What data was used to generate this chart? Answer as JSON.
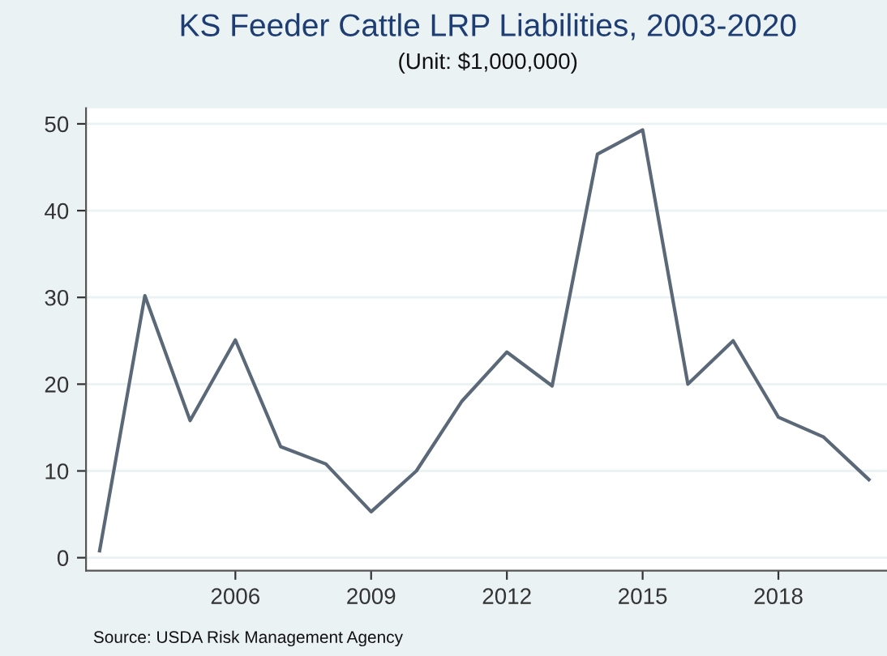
{
  "chart_data": {
    "type": "line",
    "title": "KS Feeder Cattle LRP Liabilities, 2003-2020",
    "subtitle": "(Unit: $1,000,000)",
    "x": [
      2003,
      2004,
      2005,
      2006,
      2007,
      2008,
      2009,
      2010,
      2011,
      2012,
      2013,
      2014,
      2015,
      2016,
      2017,
      2018,
      2019,
      2020
    ],
    "series": [
      {
        "color": "#5a6878",
        "values": [
          0.8,
          30.2,
          15.8,
          25.1,
          12.8,
          10.8,
          5.3,
          10.0,
          18.0,
          23.7,
          19.8,
          46.5,
          49.3,
          20.0,
          25.0,
          16.2,
          13.9,
          9.0
        ]
      }
    ],
    "xlim": [
      2002.7,
      2020.4
    ],
    "xticks": [
      2006,
      2009,
      2012,
      2015,
      2018
    ],
    "ylim": [
      -1.5,
      51.8
    ],
    "yticks": [
      0,
      10,
      20,
      30,
      40,
      50
    ],
    "grid": "y",
    "legend": false,
    "marker": "none",
    "line_style": "solid",
    "annotations": [
      "Source: USDA Risk Management Agency"
    ]
  }
}
